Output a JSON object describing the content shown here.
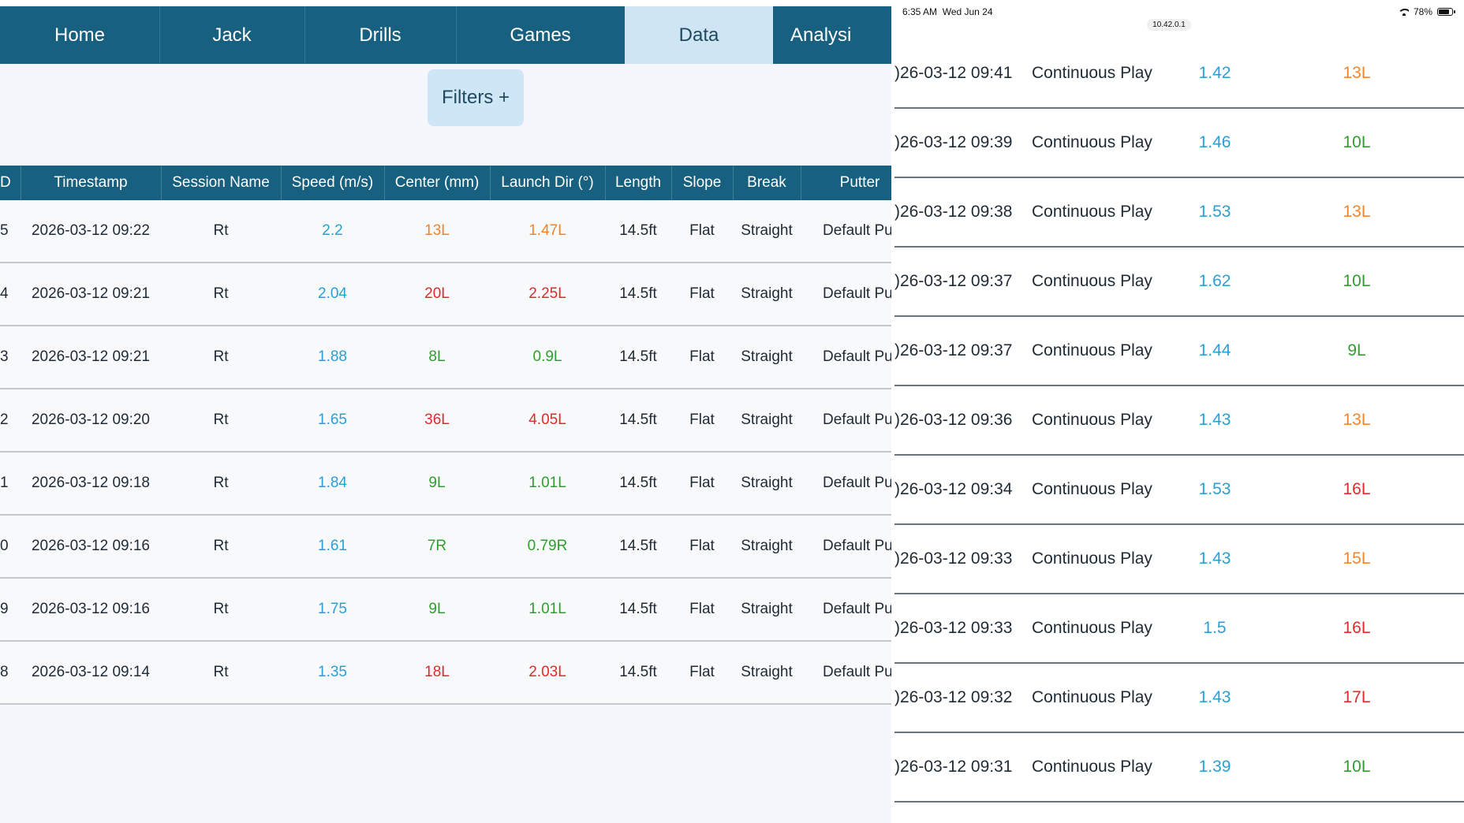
{
  "colors": {
    "nav_bg": "#17607f",
    "nav_active_bg": "#cfe5f3",
    "speed": "#2a9fd6",
    "orange": "#f0852d",
    "red": "#e02b2b",
    "green": "#2f9e2f"
  },
  "nav": {
    "tabs": [
      {
        "label": "Home"
      },
      {
        "label": "Jack"
      },
      {
        "label": "Drills"
      },
      {
        "label": "Games"
      },
      {
        "label": "Data",
        "active": true
      },
      {
        "label": "Analysi"
      }
    ]
  },
  "filters": {
    "label": "Filters +"
  },
  "table": {
    "columns": [
      "D",
      "Timestamp",
      "Session Name",
      "Speed (m/s)",
      "Center (mm)",
      "Launch Dir (°)",
      "Length",
      "Slope",
      "Break",
      "Putter"
    ],
    "rows": [
      {
        "id": "5",
        "timestamp": "2026-03-12 09:22",
        "session": "Rt",
        "speed": "2.2",
        "center": "13L",
        "center_color": "orange",
        "launch": "1.47L",
        "launch_color": "orange",
        "length": "14.5ft",
        "slope": "Flat",
        "break": "Straight",
        "putter": "Default Put"
      },
      {
        "id": "4",
        "timestamp": "2026-03-12 09:21",
        "session": "Rt",
        "speed": "2.04",
        "center": "20L",
        "center_color": "red",
        "launch": "2.25L",
        "launch_color": "red",
        "length": "14.5ft",
        "slope": "Flat",
        "break": "Straight",
        "putter": "Default Put"
      },
      {
        "id": "3",
        "timestamp": "2026-03-12 09:21",
        "session": "Rt",
        "speed": "1.88",
        "center": "8L",
        "center_color": "green",
        "launch": "0.9L",
        "launch_color": "green",
        "length": "14.5ft",
        "slope": "Flat",
        "break": "Straight",
        "putter": "Default Put"
      },
      {
        "id": "2",
        "timestamp": "2026-03-12 09:20",
        "session": "Rt",
        "speed": "1.65",
        "center": "36L",
        "center_color": "red",
        "launch": "4.05L",
        "launch_color": "red",
        "length": "14.5ft",
        "slope": "Flat",
        "break": "Straight",
        "putter": "Default Put"
      },
      {
        "id": "1",
        "timestamp": "2026-03-12 09:18",
        "session": "Rt",
        "speed": "1.84",
        "center": "9L",
        "center_color": "green",
        "launch": "1.01L",
        "launch_color": "green",
        "length": "14.5ft",
        "slope": "Flat",
        "break": "Straight",
        "putter": "Default Put"
      },
      {
        "id": "0",
        "timestamp": "2026-03-12 09:16",
        "session": "Rt",
        "speed": "1.61",
        "center": "7R",
        "center_color": "green",
        "launch": "0.79R",
        "launch_color": "green",
        "length": "14.5ft",
        "slope": "Flat",
        "break": "Straight",
        "putter": "Default Put"
      },
      {
        "id": "9",
        "timestamp": "2026-03-12 09:16",
        "session": "Rt",
        "speed": "1.75",
        "center": "9L",
        "center_color": "green",
        "launch": "1.01L",
        "launch_color": "green",
        "length": "14.5ft",
        "slope": "Flat",
        "break": "Straight",
        "putter": "Default Put"
      },
      {
        "id": "8",
        "timestamp": "2026-03-12 09:14",
        "session": "Rt",
        "speed": "1.35",
        "center": "18L",
        "center_color": "red",
        "launch": "2.03L",
        "launch_color": "red",
        "length": "14.5ft",
        "slope": "Flat",
        "break": "Straight",
        "putter": "Default Put"
      }
    ]
  },
  "status_bar": {
    "time": "6:35 AM",
    "date": "Wed Jun 24",
    "ip": "10.42.0.1",
    "battery": "78%"
  },
  "right_list": {
    "rows": [
      {
        "timestamp": ")26-03-12 09:41",
        "session": "Continuous Play",
        "speed": "1.42",
        "center": "13L",
        "center_color": "orange"
      },
      {
        "timestamp": ")26-03-12 09:39",
        "session": "Continuous Play",
        "speed": "1.46",
        "center": "10L",
        "center_color": "green"
      },
      {
        "timestamp": ")26-03-12 09:38",
        "session": "Continuous Play",
        "speed": "1.53",
        "center": "13L",
        "center_color": "orange"
      },
      {
        "timestamp": ")26-03-12 09:37",
        "session": "Continuous Play",
        "speed": "1.62",
        "center": "10L",
        "center_color": "green"
      },
      {
        "timestamp": ")26-03-12 09:37",
        "session": "Continuous Play",
        "speed": "1.44",
        "center": "9L",
        "center_color": "green"
      },
      {
        "timestamp": ")26-03-12 09:36",
        "session": "Continuous Play",
        "speed": "1.43",
        "center": "13L",
        "center_color": "orange"
      },
      {
        "timestamp": ")26-03-12 09:34",
        "session": "Continuous Play",
        "speed": "1.53",
        "center": "16L",
        "center_color": "red"
      },
      {
        "timestamp": ")26-03-12 09:33",
        "session": "Continuous Play",
        "speed": "1.43",
        "center": "15L",
        "center_color": "orange"
      },
      {
        "timestamp": ")26-03-12 09:33",
        "session": "Continuous Play",
        "speed": "1.5",
        "center": "16L",
        "center_color": "red"
      },
      {
        "timestamp": ")26-03-12 09:32",
        "session": "Continuous Play",
        "speed": "1.43",
        "center": "17L",
        "center_color": "red"
      },
      {
        "timestamp": ")26-03-12 09:31",
        "session": "Continuous Play",
        "speed": "1.39",
        "center": "10L",
        "center_color": "green"
      }
    ]
  }
}
